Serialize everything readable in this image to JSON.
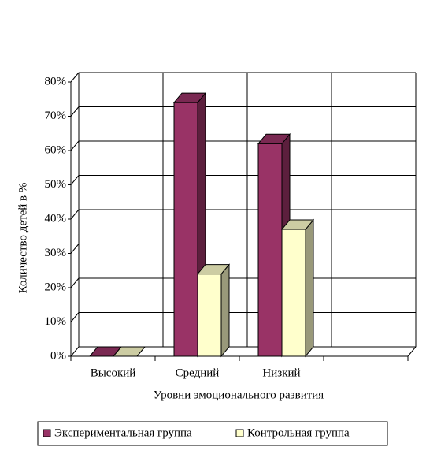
{
  "chart_data": {
    "type": "bar3d",
    "y_label": "Количество детей в %",
    "x_label": "Уровни эмоционального развития",
    "categories": [
      "Высокий",
      "Средний",
      "Низкий",
      null
    ],
    "series": [
      {
        "name": "Экспериментальная группа",
        "color": "#993366",
        "values": [
          0,
          74,
          62,
          null
        ]
      },
      {
        "name": "Контрольная группа",
        "color": "#ffffcc",
        "values": [
          0,
          24,
          37,
          null
        ]
      }
    ],
    "ylim": [
      0,
      80
    ],
    "yticks": [
      {
        "value": 0,
        "label": "0%"
      },
      {
        "value": 10,
        "label": "10%"
      },
      {
        "value": 20,
        "label": "20%"
      },
      {
        "value": 30,
        "label": "30%"
      },
      {
        "value": 40,
        "label": "40%"
      },
      {
        "value": 50,
        "label": "50%"
      },
      {
        "value": 60,
        "label": "60%"
      },
      {
        "value": 70,
        "label": "70%"
      },
      {
        "value": 80,
        "label": "80%"
      }
    ],
    "grid": true,
    "legend": "bottom"
  }
}
